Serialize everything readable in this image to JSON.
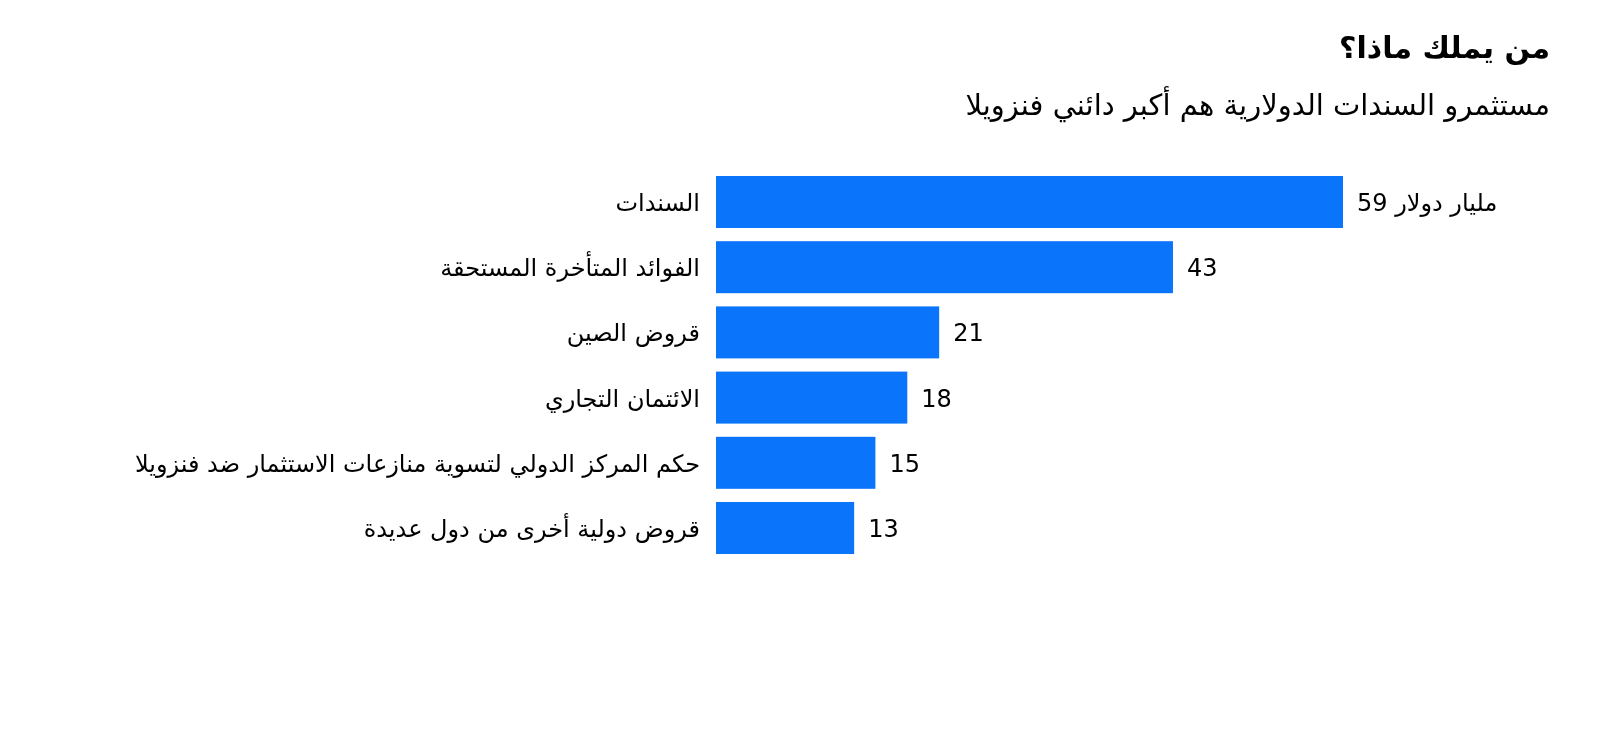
{
  "chart_data": {
    "type": "bar",
    "orientation": "horizontal",
    "title": "من يملك ماذا؟",
    "subtitle": "مستثمرو السندات الدولارية هم أكبر دائني فنزويلا",
    "categories": [
      "السندات",
      "الفوائد المتأخرة المستحقة",
      "قروض الصين",
      "الائتمان التجاري",
      "حكم المركز الدولي لتسوية منازعات الاستثمار ضد فنزويلا",
      "قروض دولية أخرى من دول عديدة"
    ],
    "values": [
      59,
      43,
      21,
      18,
      15,
      13
    ],
    "value_labels": [
      "59 مليار دولار",
      "43",
      "21",
      "18",
      "15",
      "13"
    ],
    "color": "#0a74fb"
  }
}
